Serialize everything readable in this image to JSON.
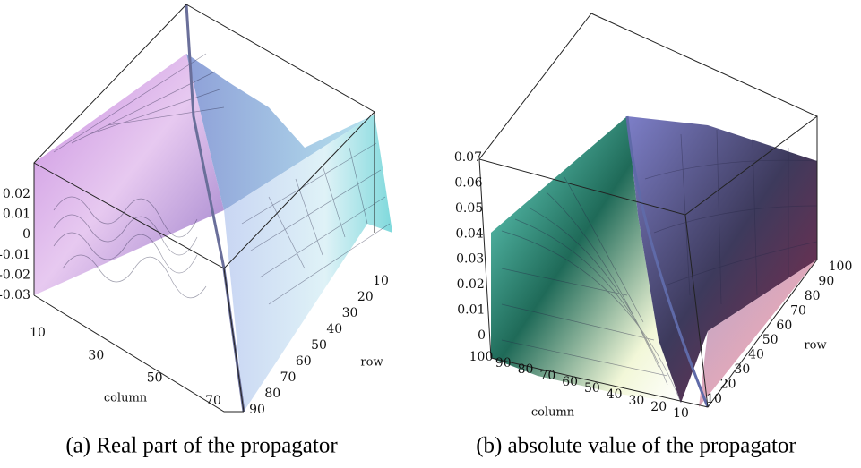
{
  "figure": {
    "panels": [
      {
        "caption": "(a) Real part of the propagator",
        "z_ticks": [
          "0.02",
          "0.01",
          "0",
          "-0.01",
          "-0.02",
          "-0.03"
        ],
        "column_label": "column",
        "column_ticks": [
          "10",
          "30",
          "50",
          "70"
        ],
        "row_label": "row",
        "row_ticks": [
          "10",
          "20",
          "30",
          "40",
          "50",
          "60",
          "70",
          "80",
          "90"
        ]
      },
      {
        "caption": "(b) absolute value of the propagator",
        "z_ticks": [
          "0.07",
          "0.06",
          "0.05",
          "0.04",
          "0.03",
          "0.02",
          "0.01",
          "0"
        ],
        "column_label": "column",
        "column_ticks": [
          "100",
          "90",
          "80",
          "70",
          "60",
          "50",
          "40",
          "30",
          "20",
          "10"
        ],
        "row_label": "row",
        "row_ticks": [
          "100",
          "90",
          "80",
          "70",
          "60",
          "50",
          "40",
          "30",
          "20",
          "10"
        ]
      }
    ]
  }
}
